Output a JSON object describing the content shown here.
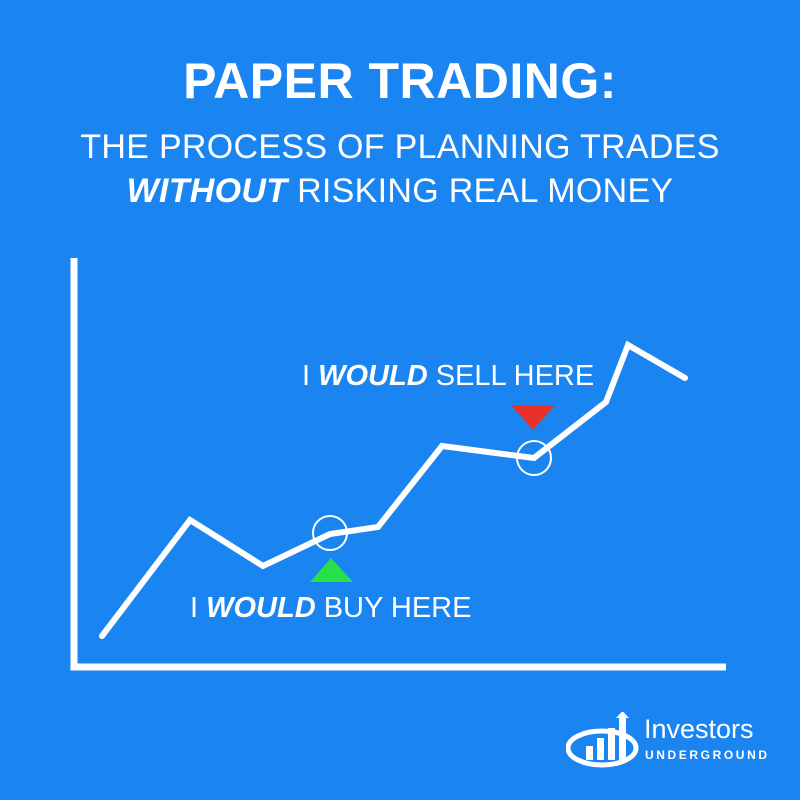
{
  "header": {
    "title": "PAPER TRADING:",
    "subtitle_line1": "THE PROCESS OF PLANNING TRADES",
    "subtitle_line2_emphasis": "WITHOUT",
    "subtitle_line2_rest": " RISKING REAL MONEY"
  },
  "annotations": {
    "sell": {
      "prefix": "I ",
      "emphasis": "WOULD",
      "rest": " SELL HERE",
      "marker_color": "#e8312a"
    },
    "buy": {
      "prefix": "I ",
      "emphasis": "WOULD",
      "rest": " BUY HERE",
      "marker_color": "#27e04a"
    }
  },
  "logo": {
    "name": "Investors",
    "sub": "UNDERGROUND"
  },
  "colors": {
    "background": "#1a84f0",
    "line": "#ffffff"
  }
}
